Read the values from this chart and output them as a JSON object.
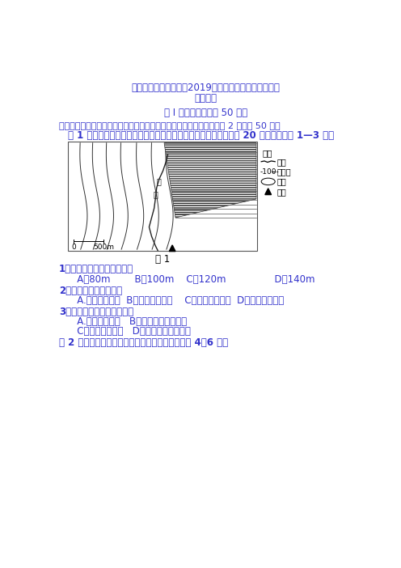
{
  "title_line1": "四川省成都市第七中学2019届下学期零诊考试高二文科",
  "title_line2": "地理试题",
  "section_header": "第 I 卷（选择题，共 50 分）",
  "section1_title": "一、选择题（下列各题的四个选项中只有一项是最符合题意的。每小题 2 分，共 50 分）",
  "intro_text": "图 1 为我国南方某地等高线地形图（单位：米），图中等高距均为 20 米，据此完成 1—3 题。",
  "fig1_caption": "图 1",
  "q1": "1．图示区域最大高差可能是",
  "q1_options": "   A．80m        B．100m    C．120m                D．140m",
  "q2": "2．图中河流流向大致是",
  "q2_options": "   A.东北流向西南  B．西北流向东南    C．西南流向东北  D．东南流向西北",
  "q3": "3．该地产业布局最合理的是",
  "q3_opt1": "   A.进展滨海旅行   B．进展木材加工工业",
  "q3_opt2": "   C．种植经济林木   D．加大水电开发力度",
  "q4_intro": "图 2 是海河流域某地局部等高线地形图。读图完成 4～6 题。",
  "text_color_blue": "#3333cc",
  "text_color_darkblue": "#2222bb",
  "text_color_black": "#000000",
  "bg_color": "#ffffff",
  "legend_label": "图例",
  "legend_river": "河流",
  "legend_contour": "等高线",
  "legend_water": "水域",
  "legend_peak": "山峰",
  "legend_contour_label": "-100-"
}
